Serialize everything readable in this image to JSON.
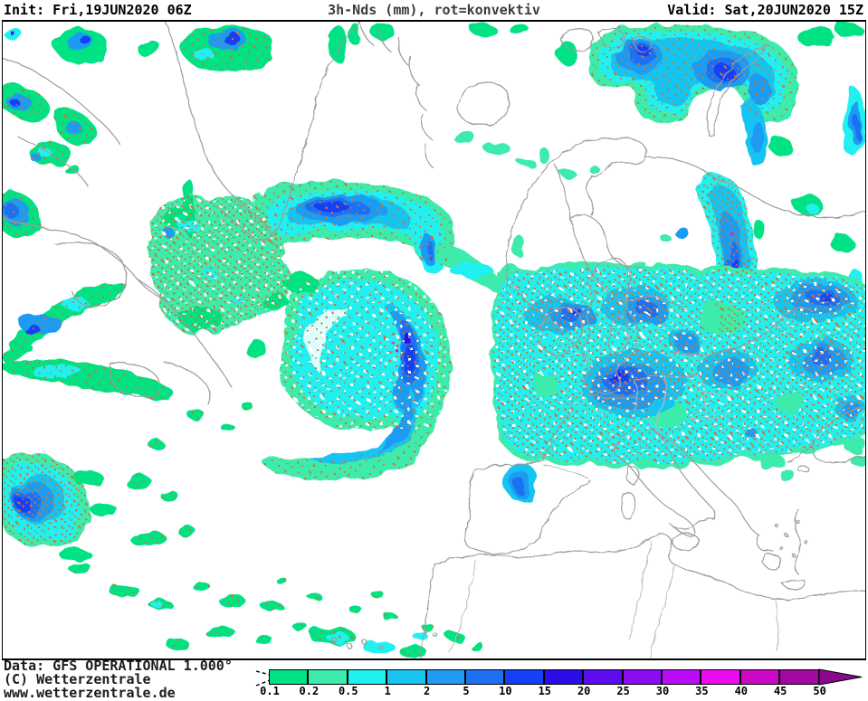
{
  "header": {
    "init_label": "Init: Fri,19JUN2020 06Z",
    "title": "3h-Nds (mm), rot=konvektiv",
    "valid_label": "Valid: Sat,20JUN2020 15Z"
  },
  "footer": {
    "line1": "Data: GFS OPERATIONAL 1.000°",
    "line2": "(C) Wetterzentrale",
    "line3": "www.wetterzentrale.de"
  },
  "legend": {
    "unit_ticks": [
      "0.1",
      "0.2",
      "0.5",
      "1",
      "2",
      "5",
      "10",
      "15",
      "20",
      "25",
      "30",
      "35",
      "40",
      "45",
      "50"
    ],
    "cells": [
      "#00E283",
      "#3DEBAD",
      "#20F0F0",
      "#18C4F2",
      "#1F9BF2",
      "#1E70F3",
      "#1540F5",
      "#2B0DE8",
      "#5C0CEF",
      "#8C0CF4",
      "#BB0CF8",
      "#EC0CF2",
      "#CC0AC6",
      "#A208A2"
    ],
    "arrow_color": "#8B078B"
  },
  "map": {
    "palette": {
      "green_0_1": "#00E283",
      "aquamarine_0_2": "#3DEBAD",
      "cyan_0_5": "#20F0F0",
      "lightblue_1": "#18C4F2",
      "blue_2": "#1F9BF2",
      "blue_5": "#1E70F3",
      "deepblue_10": "#1540F5",
      "violet_15": "#2B0DE8",
      "convective_dot": "#C9782E",
      "coastline": "#9C9C9C"
    }
  }
}
